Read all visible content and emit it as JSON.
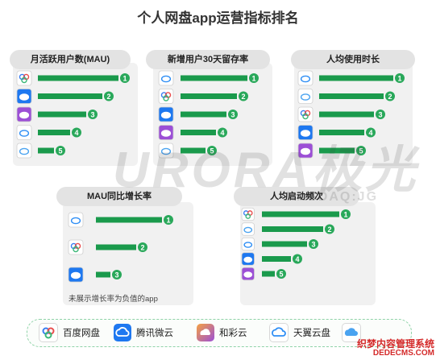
{
  "title": "个人网盘app运营指标排名",
  "watermark": "URORA极光",
  "watermark_sub": "NASDAQ:JG",
  "note": "未展示增长率为负值的app",
  "colors": {
    "bar": "#1a9a4c",
    "rank_circle": "#29a85a",
    "panel": "#f1f1f1",
    "pill": "#e3e3e3"
  },
  "apps": [
    {
      "id": "baidu",
      "label": "百度网盘",
      "icon": "baidu-cloud-icon",
      "color": "#3a7df0"
    },
    {
      "id": "tencent",
      "label": "腾讯微云",
      "icon": "weiyun-cloud-icon",
      "color": "#1e78f0"
    },
    {
      "id": "hecaiyun",
      "label": "和彩云",
      "icon": "hecaiyun-icon",
      "color": "#9c4fd6"
    },
    {
      "id": "tianyi",
      "label": "天翼云盘",
      "icon": "tianyi-cloud-icon",
      "color": "#2e8ef5"
    },
    {
      "id": "fifth",
      "label": "",
      "icon": "cloud-app-icon",
      "color": "#4aa3f0"
    }
  ],
  "chart_data": [
    {
      "type": "bar",
      "title": "月活跃用户数(MAU)",
      "categories": [
        "baidu",
        "tencent",
        "hecaiyun",
        "tianyi",
        "fifth"
      ],
      "ranks": [
        1,
        2,
        3,
        4,
        5
      ]
    },
    {
      "type": "bar",
      "title": "新增用户30天留存率",
      "categories": [
        "tianyi",
        "baidu",
        "tencent",
        "hecaiyun",
        "fifth"
      ],
      "ranks": [
        1,
        2,
        3,
        4,
        5
      ]
    },
    {
      "type": "bar",
      "title": "人均使用时长",
      "categories": [
        "tianyi",
        "fifth",
        "baidu",
        "tencent",
        "hecaiyun"
      ],
      "ranks": [
        1,
        2,
        3,
        4,
        5
      ]
    },
    {
      "type": "bar",
      "title": "MAU同比增长率",
      "categories": [
        "tianyi",
        "baidu",
        "tencent"
      ],
      "ranks": [
        1,
        2,
        3
      ]
    },
    {
      "type": "bar",
      "title": "人均启动频次",
      "categories": [
        "baidu",
        "fifth",
        "tianyi",
        "tencent",
        "hecaiyun"
      ],
      "ranks": [
        1,
        2,
        3,
        4,
        5
      ]
    }
  ],
  "corner": {
    "line1": "织梦内容管理系统",
    "line2": "DEDECMS.COM"
  }
}
